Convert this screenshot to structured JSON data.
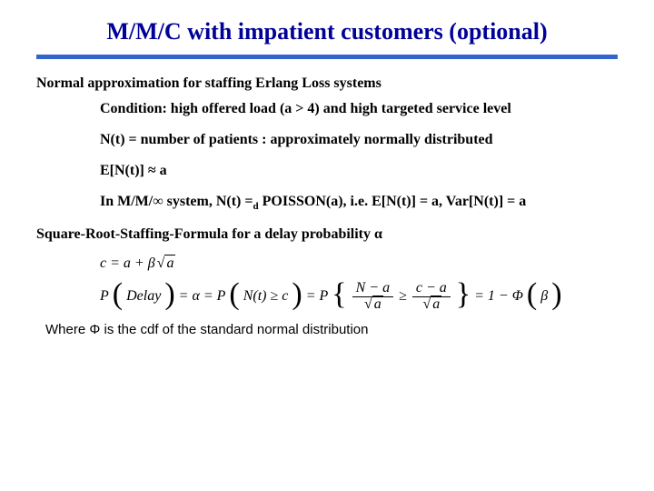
{
  "title": "M/M/C with impatient customers (optional)",
  "heading1": "Normal approximation for staffing Erlang Loss systems",
  "cond": "Condition: high offered load (a > 4) and high targeted service level",
  "nt": "N(t) = number of patients  : approximately normally distributed",
  "ent": "E[N(t)] ≈ a",
  "mminf": "In M/M/∞ system, N(t) =",
  "mminf_sub": "d",
  "mminf_tail": " POISSON(a), i.e. E[N(t)] = a, Var[N(t)] = a",
  "sqroot": "Square-Root-Staffing-Formula for a delay probability α",
  "eq_c_prefix": "c = a + β",
  "eq_c_rad": "a",
  "eq2": {
    "lhs": "P",
    "delay": "Delay",
    "eq": "= α = P",
    "ge": "N(t) ≥ c",
    "eqP": "= P",
    "num1": "N − a",
    "den1": "a",
    "ge2": " ≥ ",
    "num2": "c − a",
    "den2": "a",
    "tail": "= 1 − Φ",
    "beta": "β"
  },
  "where": "Where Φ is the cdf of the standard normal distribution",
  "colors": {
    "title": "#000099",
    "rule": "#3366cc",
    "text": "#000000",
    "background": "#ffffff"
  }
}
